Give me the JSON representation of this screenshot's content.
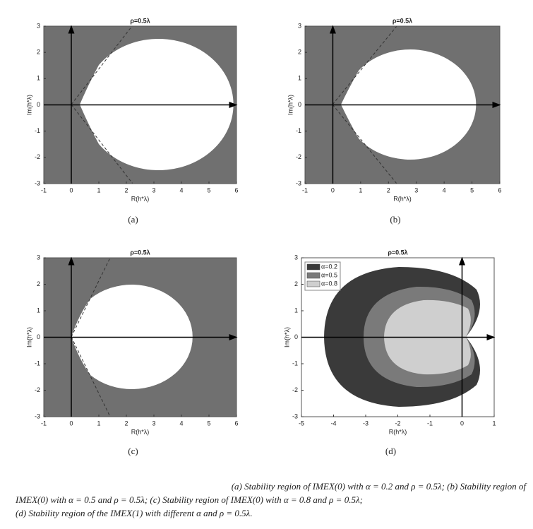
{
  "chart_data": [
    {
      "type": "region",
      "title": "ρ=0.5λ",
      "xlabel": "R(h*λ)",
      "ylabel": "Im(h*λ)",
      "label": "(a)",
      "xlim": [
        -1,
        6
      ],
      "ylim": [
        -3,
        3
      ],
      "xticks": [
        -1,
        0,
        1,
        2,
        3,
        4,
        5,
        6
      ],
      "yticks": [
        -3,
        -2,
        -1,
        0,
        1,
        2,
        3
      ]
    },
    {
      "type": "region",
      "title": "ρ=0.5λ",
      "xlabel": "R(h*λ)",
      "ylabel": "Im(h*λ)",
      "label": "(b)",
      "xlim": [
        -1,
        6
      ],
      "ylim": [
        -3,
        3
      ],
      "xticks": [
        -1,
        0,
        1,
        2,
        3,
        4,
        5,
        6
      ],
      "yticks": [
        -3,
        -2,
        -1,
        0,
        1,
        2,
        3
      ]
    },
    {
      "type": "region",
      "title": "ρ=0.5λ",
      "xlabel": "R(h*λ)",
      "ylabel": "Im(h*λ)",
      "label": "(c)",
      "xlim": [
        -1,
        6
      ],
      "ylim": [
        -3,
        3
      ],
      "xticks": [
        -1,
        0,
        1,
        2,
        3,
        4,
        5,
        6
      ],
      "yticks": [
        -3,
        -2,
        -1,
        0,
        1,
        2,
        3
      ]
    },
    {
      "type": "region",
      "title": "ρ=0.5λ",
      "xlabel": "R(h*λ)",
      "ylabel": "Im(h*λ)",
      "label": "(d)",
      "xlim": [
        -5,
        1
      ],
      "ylim": [
        -3,
        3
      ],
      "xticks": [
        -5,
        -4,
        -3,
        -2,
        -1,
        0,
        1
      ],
      "yticks": [
        -3,
        -2,
        -1,
        0,
        1,
        2,
        3
      ],
      "series": [
        {
          "name": "α=0.2",
          "color": "#3a3a3a"
        },
        {
          "name": "α=0.5",
          "color": "#7a7a7a"
        },
        {
          "name": "α=0.8",
          "color": "#cfcfcf"
        }
      ]
    }
  ],
  "caption": [
    "(a) Stability region of IMEX(0) with α = 0.2 and ρ = 0.5λ; (b) Stability region of",
    "IMEX(0) with α = 0.5 and ρ = 0.5λ; (c) Stability region of IMEX(0) with α = 0.8 and ρ = 0.5λ;",
    "(d) Stability region of the IMEX(1) with different α and ρ = 0.5λ."
  ]
}
